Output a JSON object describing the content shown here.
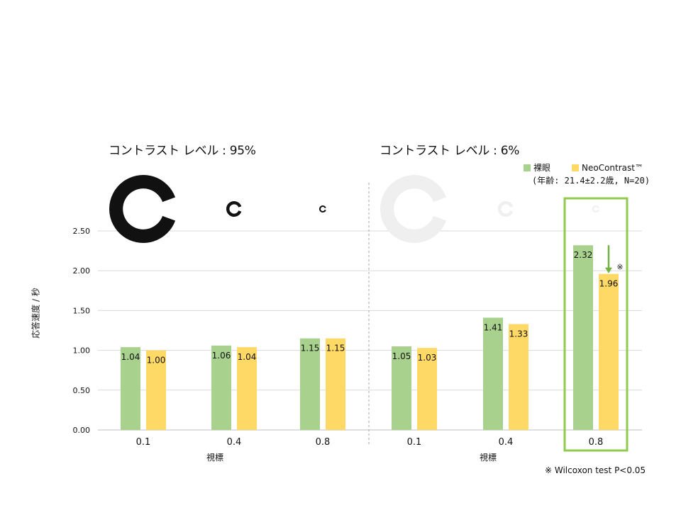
{
  "chart_data": {
    "type": "bar",
    "panels": [
      {
        "title": "コントラスト レベル : 95%",
        "xlabel": "視標",
        "categories": [
          "0.1",
          "0.4",
          "0.8"
        ],
        "landolt_color": "#111111",
        "series": [
          {
            "name": "裸眼",
            "values": [
              1.04,
              1.06,
              1.15
            ]
          },
          {
            "name": "NeoContrast™",
            "values": [
              1.0,
              1.04,
              1.15
            ]
          }
        ]
      },
      {
        "title": "コントラスト レベル : 6%",
        "xlabel": "視標",
        "categories": [
          "0.1",
          "0.4",
          "0.8"
        ],
        "landolt_color": "#efefef",
        "series": [
          {
            "name": "裸眼",
            "values": [
              1.05,
              1.41,
              2.32
            ]
          },
          {
            "name": "NeoContrast™",
            "values": [
              1.03,
              1.33,
              1.96
            ]
          }
        ]
      }
    ],
    "ylabel": "応答速度 / 秒",
    "ylim": [
      0,
      2.5
    ],
    "yticks": [
      "0.00",
      "0.50",
      "1.00",
      "1.50",
      "2.00",
      "2.50"
    ],
    "grid": true,
    "legend_position": "top-right",
    "colors": {
      "series_0": "#a9d18e",
      "series_1": "#ffd966",
      "highlight": "#92c951",
      "arrow": "#70b040"
    },
    "highlight": {
      "panel": 1,
      "category": "0.8",
      "marker": "※"
    },
    "legend_note": "(年齢: 21.4±2.2歳, N=20)",
    "footnote": "※ Wilcoxon test P<0.05"
  }
}
